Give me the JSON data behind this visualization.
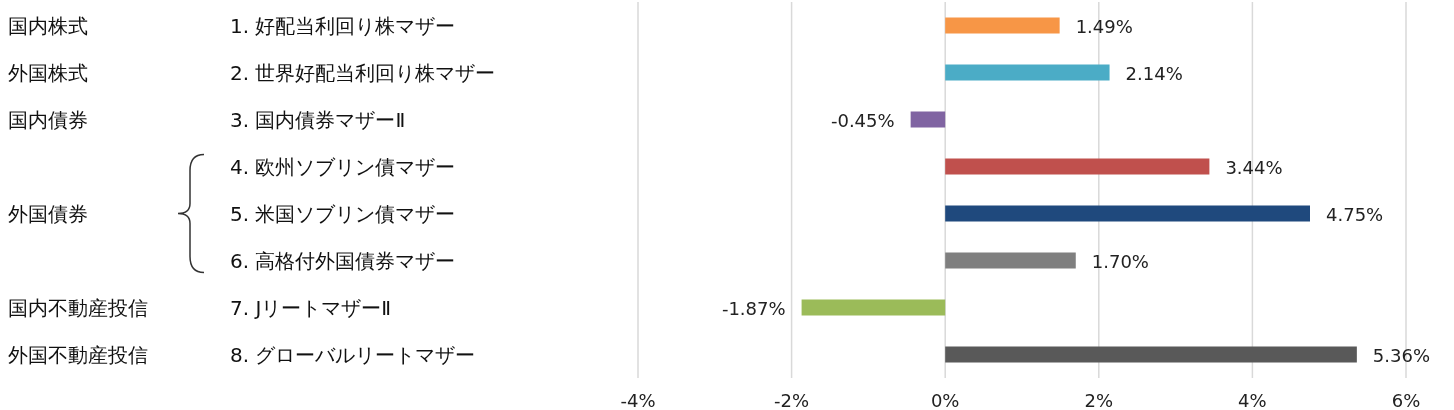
{
  "chart_data": {
    "type": "bar",
    "orientation": "horizontal",
    "categories": [
      "1. 好配当利回り株マザー",
      "2. 世界好配当利回り株マザー",
      "3. 国内債券マザーⅡ",
      "4. 欧州ソブリン債マザー",
      "5. 米国ソブリン債マザー",
      "6. 高格付外国債券マザー",
      "7. JリートマザーⅡ",
      "8. グローバルリートマザー"
    ],
    "values": [
      1.49,
      2.14,
      -0.45,
      3.44,
      4.75,
      1.7,
      -1.87,
      5.36
    ],
    "colors": [
      "#f79646",
      "#4bacc6",
      "#8064a2",
      "#c0504d",
      "#1f497d",
      "#7f7f7f",
      "#9bbb59",
      "#595959"
    ],
    "value_labels": [
      "1.49%",
      "2.14%",
      "-0.45%",
      "3.44%",
      "4.75%",
      "1.70%",
      "-1.87%",
      "5.36%"
    ],
    "xlim": [
      -4,
      6
    ],
    "xticks": [
      {
        "value": -4,
        "label": "-4%"
      },
      {
        "value": -2,
        "label": "-2%"
      },
      {
        "value": 0,
        "label": "0%"
      },
      {
        "value": 2,
        "label": "2%"
      },
      {
        "value": 4,
        "label": "4%"
      },
      {
        "value": 6,
        "label": "6%"
      }
    ],
    "grid": "x",
    "annotations": [
      "国内株式",
      "外国株式",
      "国内債券",
      "外国債券",
      "国内不動産投信",
      "外国不動産投信"
    ]
  }
}
